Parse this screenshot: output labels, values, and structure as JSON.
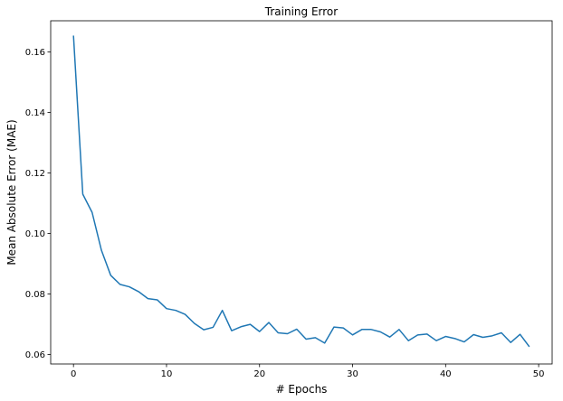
{
  "chart_data": {
    "type": "line",
    "title": "Training Error",
    "xlabel": "# Epochs",
    "ylabel": "Mean Absolute Error (MAE)",
    "xlim": [
      -2.45,
      51.45
    ],
    "ylim": [
      0.0569,
      0.1703
    ],
    "xticks": [
      0,
      10,
      20,
      30,
      40,
      50
    ],
    "xtick_labels": [
      "0",
      "10",
      "20",
      "30",
      "40",
      "50"
    ],
    "yticks": [
      0.06,
      0.08,
      0.1,
      0.12,
      0.14,
      0.16
    ],
    "ytick_labels": [
      "0.06",
      "0.08",
      "0.10",
      "0.12",
      "0.14",
      "0.16"
    ],
    "grid": false,
    "series": [
      {
        "color": "#1f77b4",
        "x": [
          0,
          1,
          2,
          3,
          4,
          5,
          6,
          7,
          8,
          9,
          10,
          11,
          12,
          13,
          14,
          15,
          16,
          17,
          18,
          19,
          20,
          21,
          22,
          23,
          24,
          25,
          26,
          27,
          28,
          29,
          30,
          31,
          32,
          33,
          34,
          35,
          36,
          37,
          38,
          39,
          40,
          41,
          42,
          43,
          44,
          45,
          46,
          47,
          48,
          49
        ],
        "y": [
          0.1654,
          0.113,
          0.107,
          0.0945,
          0.0862,
          0.0832,
          0.0824,
          0.0808,
          0.0785,
          0.0781,
          0.0752,
          0.0746,
          0.0733,
          0.0703,
          0.0682,
          0.069,
          0.0746,
          0.0679,
          0.0692,
          0.07,
          0.0676,
          0.0706,
          0.0672,
          0.0669,
          0.0684,
          0.0651,
          0.0656,
          0.0638,
          0.0691,
          0.0688,
          0.0665,
          0.0683,
          0.0683,
          0.0675,
          0.0658,
          0.0683,
          0.0646,
          0.0665,
          0.0668,
          0.0646,
          0.066,
          0.0653,
          0.0642,
          0.0666,
          0.0657,
          0.0662,
          0.0672,
          0.064,
          0.0667,
          0.0626
        ]
      }
    ]
  }
}
